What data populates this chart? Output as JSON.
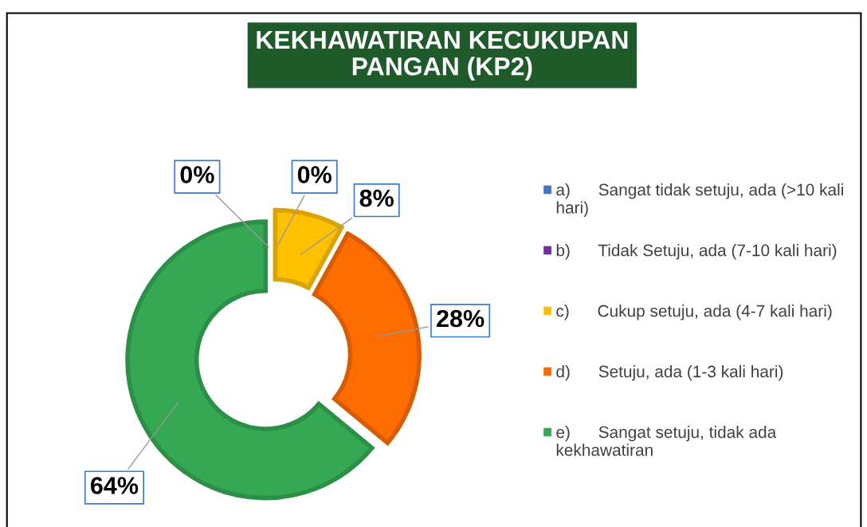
{
  "chart_data": {
    "type": "donut",
    "title": "KEKHAWATIRAN KECUKUPAN\nPANGAN (KP2)",
    "categories": [
      "a)      Sangat tidak setuju, ada (>10 kali hari)",
      "b)      Tidak Setuju, ada (7-10 kali hari)",
      "c)      Cukup setuju, ada (4-7 kali hari)",
      "d)      Setuju, ada (1-3 kali hari)",
      "e)      Sangat setuju, tidak ada kekhawatiran"
    ],
    "values": [
      0,
      0,
      8,
      28,
      64
    ],
    "value_labels": [
      "0%",
      "0%",
      "8%",
      "28%",
      "64%"
    ],
    "colors": [
      "#4472c4",
      "#7030a0",
      "#ffc000",
      "#ff6d00",
      "#34a853"
    ],
    "legend": "right"
  }
}
